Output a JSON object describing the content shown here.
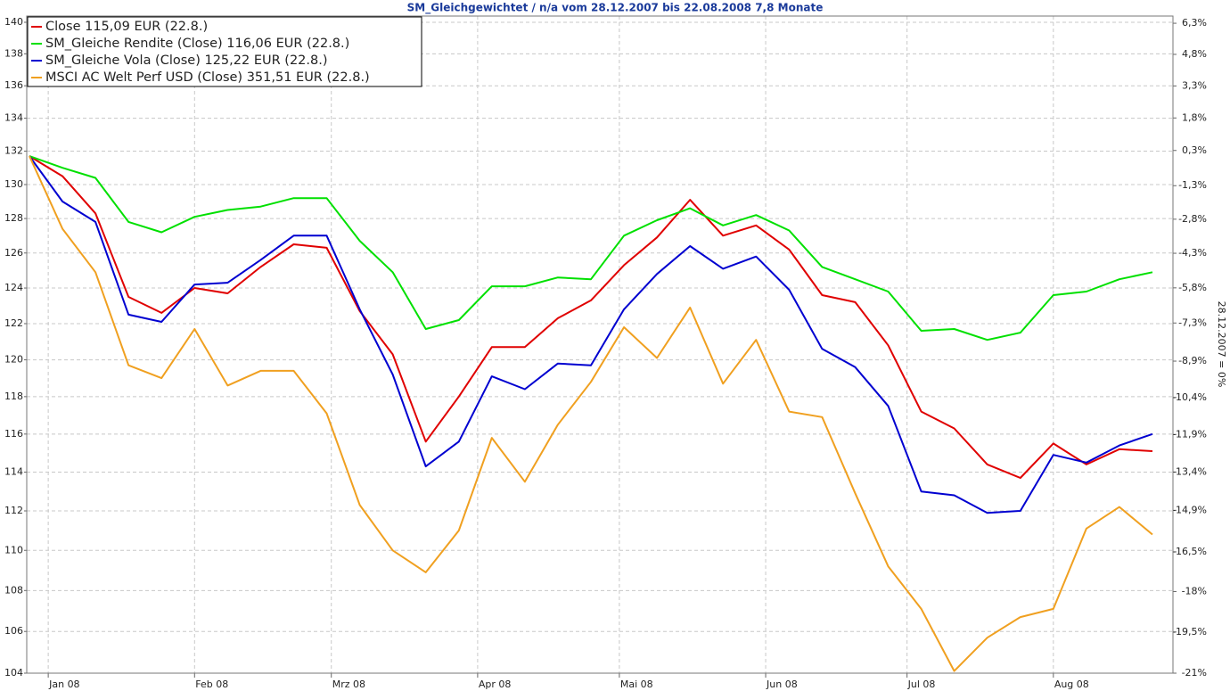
{
  "chart_data": {
    "type": "line",
    "title": "SM_Gleichgewichtet / n/a vom 28.12.2007 bis 22.08.2008 7,8 Monate",
    "y2_label": "28.12.2007 = 0%",
    "categories": [
      null,
      null,
      null,
      null,
      null,
      null,
      null,
      null,
      null,
      null,
      null,
      null,
      null,
      null,
      null,
      null,
      null,
      null,
      null,
      null,
      null,
      null,
      null,
      null,
      null,
      null,
      null,
      null,
      null,
      null,
      null,
      null,
      null,
      null,
      null
    ],
    "xlim": [
      0,
      34
    ],
    "xticks": [
      {
        "value": 0.57,
        "label": "Jan 08"
      },
      {
        "value": 5,
        "label": "Feb 08"
      },
      {
        "value": 9.14,
        "label": "Mrz 08"
      },
      {
        "value": 13.57,
        "label": "Apr 08"
      },
      {
        "value": 17.86,
        "label": "Mai 08"
      },
      {
        "value": 22.29,
        "label": "Jun 08"
      },
      {
        "value": 26.57,
        "label": "Jul 08"
      },
      {
        "value": 31,
        "label": "Aug 08"
      }
    ],
    "ylim": [
      104,
      140.4
    ],
    "log_scale": true,
    "yticks": [
      104,
      106,
      108,
      110,
      112,
      114,
      116,
      118,
      120,
      122,
      124,
      126,
      128,
      130,
      132,
      134,
      136,
      138,
      140
    ],
    "y2lim": [
      -21,
      6.65
    ],
    "y2ticks": [
      {
        "value": 6.3,
        "label": "6,3%"
      },
      {
        "value": 4.8,
        "label": "4,8%"
      },
      {
        "value": 3.3,
        "label": "3,3%"
      },
      {
        "value": 1.8,
        "label": "1,8%"
      },
      {
        "value": 0.3,
        "label": "0,3%"
      },
      {
        "value": -1.3,
        "label": "-1,3%"
      },
      {
        "value": -2.8,
        "label": "-2,8%"
      },
      {
        "value": -4.3,
        "label": "-4,3%"
      },
      {
        "value": -5.8,
        "label": "-5,8%"
      },
      {
        "value": -7.3,
        "label": "-7,3%"
      },
      {
        "value": -8.9,
        "label": "-8,9%"
      },
      {
        "value": -10.4,
        "label": "-10,4%"
      },
      {
        "value": -11.9,
        "label": "-11,9%"
      },
      {
        "value": -13.4,
        "label": "-13,4%"
      },
      {
        "value": -14.9,
        "label": "-14,9%"
      },
      {
        "value": -16.5,
        "label": "-16,5%"
      },
      {
        "value": -18,
        "label": "-18%"
      },
      {
        "value": -19.5,
        "label": "-19,5%"
      },
      {
        "value": -21,
        "label": "-21%"
      }
    ],
    "grid": true,
    "legend": "top-left",
    "series": [
      {
        "name": "Close 115,09 EUR (22.8.)",
        "color": "#e00000",
        "values": [
          131.7,
          130.5,
          128.3,
          123.5,
          122.6,
          124.0,
          123.7,
          125.2,
          126.5,
          126.3,
          122.7,
          120.3,
          115.6,
          118.0,
          120.7,
          120.7,
          122.3,
          123.3,
          125.3,
          126.9,
          129.1,
          127.0,
          127.6,
          126.2,
          123.6,
          123.2,
          120.8,
          117.2,
          116.3,
          114.4,
          113.7,
          115.5,
          114.4,
          115.2,
          115.1
        ]
      },
      {
        "name": "SM_Gleiche Rendite (Close) 116,06 EUR (22.8.)",
        "color": "#00e000",
        "values": [
          131.7,
          131.0,
          130.4,
          127.8,
          127.2,
          128.1,
          128.5,
          128.7,
          129.2,
          129.2,
          126.7,
          124.9,
          121.7,
          122.2,
          124.1,
          124.1,
          124.6,
          124.5,
          127.0,
          127.9,
          128.6,
          127.6,
          128.2,
          127.3,
          125.2,
          124.5,
          123.8,
          121.6,
          121.7,
          121.1,
          121.5,
          123.6,
          123.8,
          124.5,
          124.9
        ]
      },
      {
        "name": "SM_Gleiche Vola (Close) 125,22 EUR (22.8.)",
        "color": "#0000d0",
        "values": [
          131.7,
          129.0,
          127.8,
          122.5,
          122.1,
          124.2,
          124.3,
          125.6,
          127.0,
          127.0,
          122.8,
          119.2,
          114.3,
          115.6,
          119.1,
          118.4,
          119.8,
          119.7,
          122.8,
          124.8,
          126.4,
          125.1,
          125.8,
          123.9,
          120.6,
          119.6,
          117.5,
          113.0,
          112.8,
          111.9,
          112.0,
          114.9,
          114.5,
          115.4,
          116.0
        ]
      },
      {
        "name": "MSCI AC Welt Perf USD (Close) 351,51 EUR (22.8.)",
        "color": "#f0a020",
        "values": [
          131.7,
          127.4,
          124.9,
          119.7,
          119.0,
          121.7,
          118.6,
          119.4,
          119.4,
          117.1,
          112.3,
          110.0,
          108.9,
          111.0,
          115.8,
          113.5,
          116.5,
          118.8,
          121.8,
          120.1,
          122.9,
          118.7,
          121.1,
          117.2,
          116.9,
          112.9,
          109.2,
          107.1,
          104.1,
          105.7,
          106.7,
          107.1,
          111.1,
          112.2,
          110.8
        ]
      }
    ]
  }
}
